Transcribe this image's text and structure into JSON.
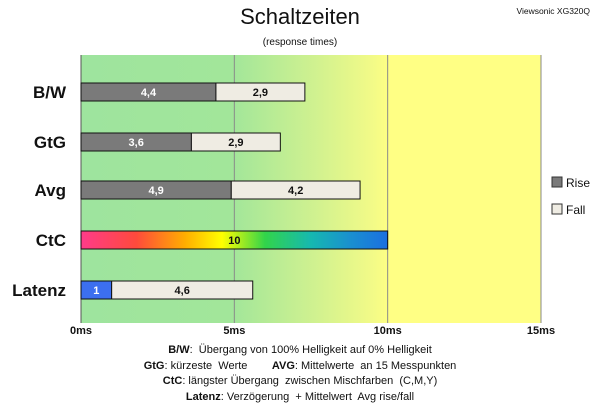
{
  "header": {
    "title": "Schaltzeiten",
    "subtitle": "(response times)",
    "brand": "Viewsonic XG320Q"
  },
  "colors": {
    "rise": "#7a7a7a",
    "fall": "#efece3",
    "latency_rise": "#3c6ff0",
    "plot_green": "#9de39d",
    "plot_yellow": "#ffff84"
  },
  "chart_data": {
    "type": "bar",
    "orientation": "horizontal",
    "stacked": true,
    "categories": [
      "B/W",
      "GtG",
      "Avg",
      "CtC",
      "Latenz"
    ],
    "series": [
      {
        "name": "Rise",
        "values": [
          4.4,
          3.6,
          4.9,
          10,
          1
        ],
        "labels": [
          "4,4",
          "3,6",
          "4,9",
          "10",
          "1"
        ]
      },
      {
        "name": "Fall",
        "values": [
          2.9,
          2.9,
          4.2,
          null,
          4.6
        ],
        "labels": [
          "2,9",
          "2,9",
          "4,2",
          "",
          "4,6"
        ]
      }
    ],
    "xlim": [
      0,
      15
    ],
    "xticks": [
      0,
      5,
      10,
      15
    ],
    "xtick_labels": [
      "0ms",
      "5ms",
      "10ms",
      "15ms"
    ],
    "gridlines": true,
    "legend_position": "right",
    "background": "gradient green to yellow",
    "ctc_fill": "rainbow gradient"
  },
  "notes": [
    {
      "bold": "B/W",
      "text": ":  Übergang von 100% Helligkeit auf 0% Helligkeit"
    },
    {
      "bold": "GtG",
      "text": ": kürzeste  Werte",
      "bold2": "AVG",
      "text2": ": Mittelwerte  an 15 Messpunkten"
    },
    {
      "bold": "CtC",
      "text": ": längster Übergang  zwischen Mischfarben  (C,M,Y)"
    },
    {
      "bold": "Latenz",
      "text": ": Verzögerung  + Mittelwert  Avg rise/fall"
    }
  ]
}
